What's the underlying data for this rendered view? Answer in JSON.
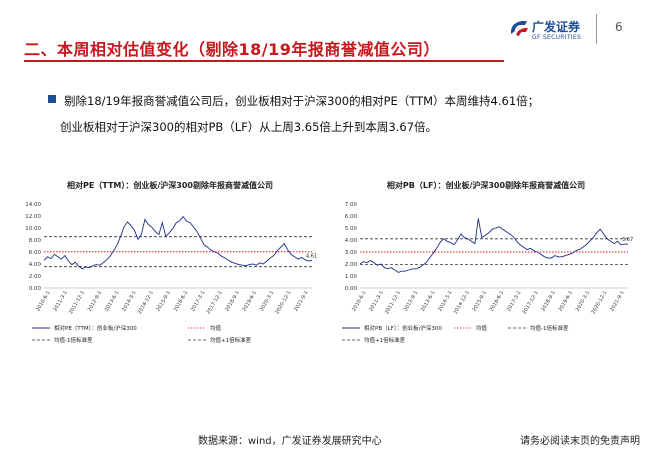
{
  "header": {
    "title": "二、本周相对估值变化（剔除18/19年报商誉减值公司）",
    "logo_cn": "广发证券",
    "logo_en": "GF SECURITIES",
    "page_number": "6"
  },
  "summary": {
    "line1": "剔除18/19年报商誉减值公司后，创业板相对于沪深300的相对PE（TTM）本周维持4.61倍；",
    "line2": "创业板相对于沪深300的相对PB（LF）从上周3.65倍上升到本周3.67倍。"
  },
  "footer": {
    "source": "数据来源：wind，广发证券发展研究中心",
    "disclaimer": "请务必阅读末页的免责声明"
  },
  "colors": {
    "brand_red": "#c8161d",
    "brand_blue": "#1d4e96",
    "series_blue": "#1f2d8a",
    "mean_red": "#e0141e",
    "band_dark": "#333333"
  },
  "chart_data": [
    {
      "type": "line",
      "title": "相对PE（TTM）：创业板/沪深300剔除年报商誉减值公司",
      "ylim": [
        0,
        14
      ],
      "yticks": [
        "0.00",
        "2.00",
        "4.00",
        "6.00",
        "8.00",
        "10.00",
        "12.00",
        "14.00"
      ],
      "xticks": [
        "2010-6-1",
        "2011-3-1",
        "2011-12-1",
        "2012-9-1",
        "2013-6-1",
        "2014-3-1",
        "2014-12-1",
        "2015-9-1",
        "2016-6-1",
        "2017-3-1",
        "2017-12-1",
        "2018-9-1",
        "2019-6-1",
        "2020-3-1",
        "2020-12-1",
        "2021-9-1"
      ],
      "grid": false,
      "legend_position": "bottom",
      "end_label": "4.61",
      "series": [
        {
          "name": "相对PE（TTM）：创业板/沪深300",
          "style": "line",
          "values": [
            4.6,
            5.2,
            4.9,
            5.6,
            5.2,
            4.8,
            5.4,
            4.5,
            3.9,
            4.3,
            3.6,
            3.2,
            3.5,
            3.4,
            3.7,
            3.9,
            3.8,
            4.2,
            4.7,
            5.3,
            6.2,
            7.2,
            8.6,
            10.2,
            11.0,
            10.4,
            9.6,
            8.1,
            9.0,
            11.4,
            10.6,
            10.1,
            9.4,
            8.9,
            10.9,
            8.6,
            9.2,
            9.9,
            10.9,
            11.2,
            11.9,
            11.1,
            10.9,
            10.1,
            9.4,
            8.3,
            7.2,
            6.8,
            6.3,
            6.0,
            5.8,
            5.3,
            5.0,
            4.6,
            4.3,
            4.1,
            3.9,
            3.8,
            3.7,
            3.9,
            4.0,
            3.8,
            4.2,
            4.0,
            4.5,
            5.0,
            5.4,
            6.2,
            6.8,
            7.4,
            6.4,
            5.6,
            5.2,
            4.8,
            5.1,
            4.7,
            4.5,
            4.6
          ]
        },
        {
          "name": "均值",
          "style": "dotted",
          "values": [
            6.05
          ]
        },
        {
          "name": "均值-1倍标准差",
          "style": "dashed",
          "values": [
            3.55
          ]
        },
        {
          "name": "均值+1倍标准差",
          "style": "dashed",
          "values": [
            8.55
          ]
        }
      ]
    },
    {
      "type": "line",
      "title": "相对PB（LF）：创业板/沪深300剔除年报商誉减值公司",
      "ylim": [
        0,
        7
      ],
      "yticks": [
        "0.00",
        "1.00",
        "2.00",
        "3.00",
        "4.00",
        "5.00",
        "6.00",
        "7.00"
      ],
      "xticks": [
        "2010-6-1",
        "2011-3-1",
        "2011-12-1",
        "2012-9-1",
        "2013-6-1",
        "2014-3-1",
        "2014-12-1",
        "2015-9-1",
        "2016-6-1",
        "2017-3-1",
        "2017-12-1",
        "2018-9-1",
        "2019-6-1",
        "2020-3-1",
        "2020-12-1",
        "2021-9-1"
      ],
      "grid": false,
      "legend_position": "bottom",
      "end_label": "3.67",
      "series": [
        {
          "name": "相对PB（LF）：创业板/沪深300",
          "style": "line",
          "values": [
            2.0,
            2.2,
            2.1,
            2.3,
            2.1,
            1.9,
            2.0,
            1.7,
            1.6,
            1.7,
            1.5,
            1.3,
            1.4,
            1.4,
            1.5,
            1.6,
            1.6,
            1.7,
            1.9,
            2.1,
            2.5,
            2.9,
            3.3,
            3.8,
            4.1,
            3.9,
            3.8,
            3.6,
            4.0,
            4.5,
            4.2,
            4.1,
            3.9,
            3.7,
            5.8,
            4.2,
            4.4,
            4.6,
            4.9,
            5.0,
            5.1,
            4.9,
            4.7,
            4.5,
            4.3,
            3.9,
            3.6,
            3.4,
            3.2,
            3.3,
            3.1,
            3.0,
            2.8,
            2.6,
            2.5,
            2.5,
            2.7,
            2.6,
            2.6,
            2.7,
            2.8,
            2.9,
            3.1,
            3.2,
            3.4,
            3.6,
            3.9,
            4.2,
            4.6,
            4.9,
            4.5,
            4.1,
            3.9,
            3.7,
            3.9,
            3.6,
            3.65,
            3.67
          ]
        },
        {
          "name": "均值",
          "style": "dotted",
          "values": [
            3.0
          ]
        },
        {
          "name": "均值-1倍标准差",
          "style": "dashed",
          "values": [
            1.95
          ]
        },
        {
          "name": "均值+1倍标准差",
          "style": "dashed",
          "values": [
            4.1
          ]
        }
      ]
    }
  ]
}
